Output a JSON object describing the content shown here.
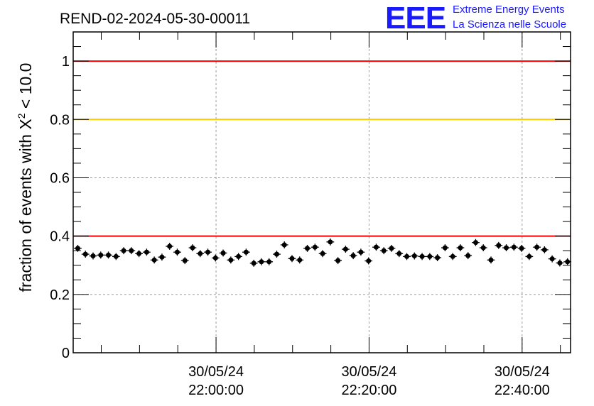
{
  "title": "REND-02-2024-05-30-00011",
  "logo": {
    "main": "EEE",
    "line1": "Extreme Energy Events",
    "line2": "La Scienza nelle Scuole"
  },
  "chart_data": {
    "type": "scatter",
    "title": "REND-02-2024-05-30-00011",
    "ylabel": "fraction of events with χ² < 10.0",
    "ylabel_parts": {
      "before": "fraction of events with ",
      "symbol": "X",
      "sup": "2",
      "after": " < 10.0"
    },
    "xlabel": "",
    "x_unit": "minutes after 21:41:20 on 30/05/24",
    "xlim": [
      0,
      65
    ],
    "ylim": [
      0,
      1.1
    ],
    "grid": true,
    "x_ticks": [
      {
        "x": 18.67,
        "date": "30/05/24",
        "time": "22:00:00"
      },
      {
        "x": 38.67,
        "date": "30/05/24",
        "time": "22:20:00"
      },
      {
        "x": 58.67,
        "date": "30/05/24",
        "time": "22:40:00"
      }
    ],
    "y_ticks": [
      {
        "value": 0,
        "label": "0"
      },
      {
        "value": 0.2,
        "label": "0.2"
      },
      {
        "value": 0.4,
        "label": "0.4"
      },
      {
        "value": 0.6,
        "label": "0.6"
      },
      {
        "value": 0.8,
        "label": "0.8"
      },
      {
        "value": 1.0,
        "label": "1"
      }
    ],
    "reference_lines": [
      {
        "y": 1.0,
        "color": "#ff0000"
      },
      {
        "y": 0.8,
        "color": "#ffcc00"
      },
      {
        "y": 0.4,
        "color": "#ff0000"
      }
    ],
    "marker_color": "#000000",
    "error_y": 0.012,
    "error_x": 0.5,
    "series": [
      {
        "x": [
          0.6,
          1.6,
          2.6,
          3.6,
          4.6,
          5.6,
          6.6,
          7.6,
          8.6,
          9.6,
          10.6,
          11.6,
          12.6,
          13.6,
          14.6,
          15.6,
          16.6,
          17.6,
          18.6,
          19.6,
          20.6,
          21.6,
          22.6,
          23.6,
          24.6,
          25.6,
          26.6,
          27.6,
          28.6,
          29.6,
          30.6,
          31.6,
          32.6,
          33.6,
          34.6,
          35.6,
          36.6,
          37.6,
          38.6,
          39.6,
          40.6,
          41.6,
          42.6,
          43.6,
          44.6,
          45.6,
          46.6,
          47.6,
          48.6,
          49.6,
          50.6,
          51.6,
          52.6,
          53.6,
          54.6,
          55.6,
          56.6,
          57.6,
          58.6,
          59.6,
          60.6,
          61.6,
          62.6,
          63.6,
          64.6
        ],
        "values": [
          0.358,
          0.338,
          0.332,
          0.335,
          0.335,
          0.33,
          0.35,
          0.35,
          0.34,
          0.345,
          0.318,
          0.328,
          0.365,
          0.345,
          0.316,
          0.36,
          0.34,
          0.345,
          0.325,
          0.342,
          0.318,
          0.33,
          0.345,
          0.307,
          0.312,
          0.312,
          0.338,
          0.37,
          0.323,
          0.318,
          0.358,
          0.362,
          0.34,
          0.38,
          0.316,
          0.355,
          0.333,
          0.345,
          0.315,
          0.362,
          0.35,
          0.358,
          0.34,
          0.33,
          0.332,
          0.33,
          0.33,
          0.326,
          0.36,
          0.33,
          0.36,
          0.333,
          0.378,
          0.36,
          0.318,
          0.368,
          0.36,
          0.362,
          0.358,
          0.33,
          0.362,
          0.353,
          0.322,
          0.308,
          0.312
        ]
      }
    ]
  }
}
